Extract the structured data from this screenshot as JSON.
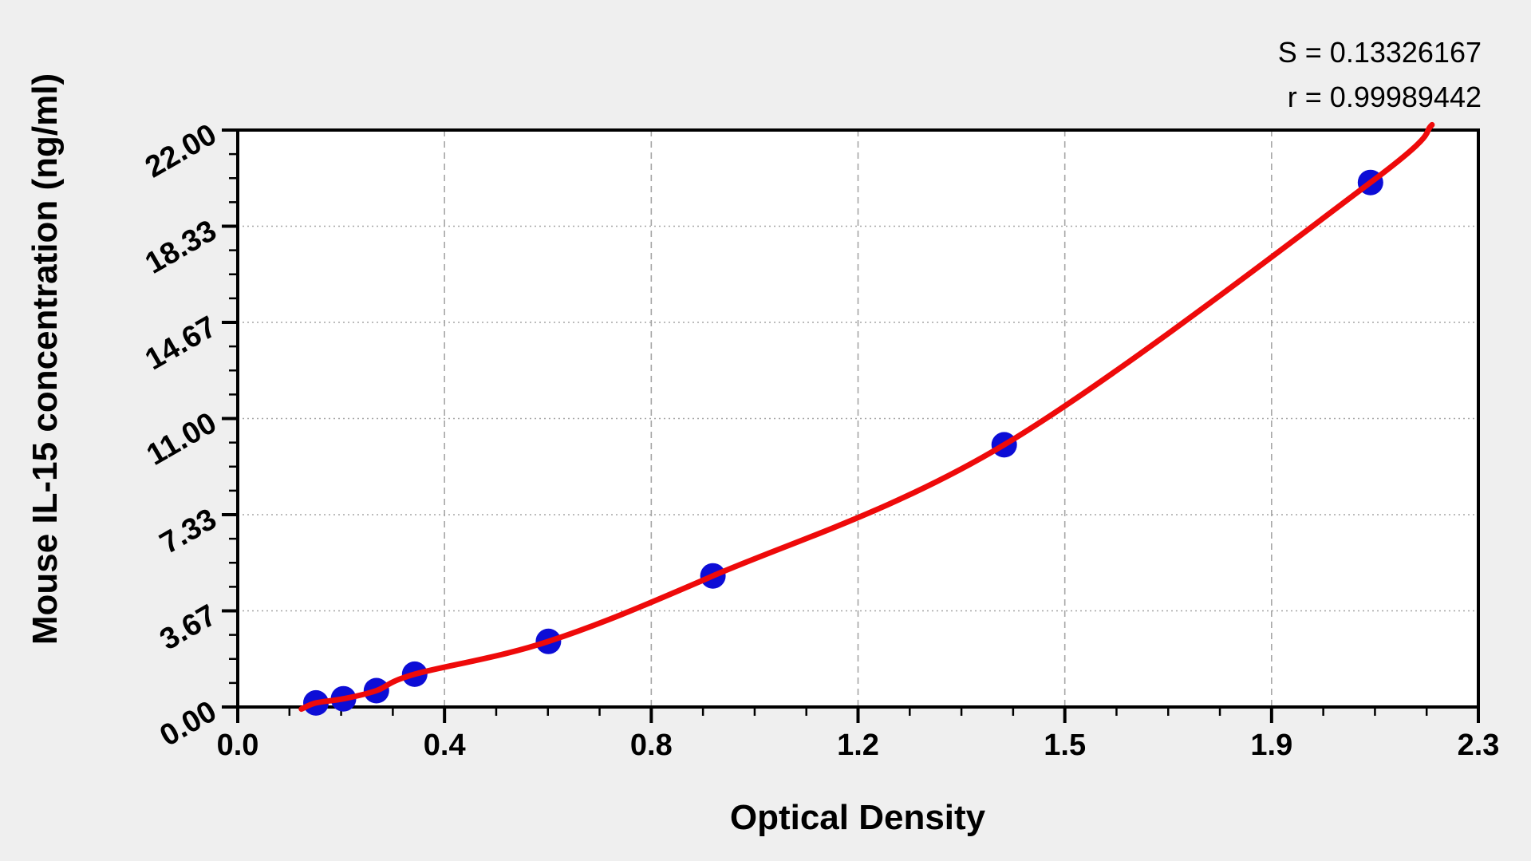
{
  "chart_data": {
    "type": "scatter",
    "xlabel": "Optical Density",
    "ylabel": "Mouse IL-15 concentration (ng/ml)",
    "xlim": [
      0,
      2.3
    ],
    "ylim": [
      0,
      22
    ],
    "x_tick_labels": [
      "0.0",
      "0.4",
      "0.8",
      "1.2",
      "1.5",
      "1.9",
      "2.3"
    ],
    "y_tick_labels": [
      "0.00",
      "3.67",
      "7.33",
      "11.00",
      "14.67",
      "18.33",
      "22.00"
    ],
    "minor_ticks_per_major_interval": 3,
    "grid": "dashed gray lines at major ticks",
    "legend_position": "none",
    "annotations": {
      "s": "S = 0.13326167",
      "r": "r = 0.99989442"
    },
    "series": [
      {
        "name": "standard-points",
        "type": "scatter",
        "color": "#0d0dd6",
        "marker": "circle",
        "points": [
          [
            0.145,
            0.156
          ],
          [
            0.196,
            0.3125
          ],
          [
            0.257,
            0.625
          ],
          [
            0.328,
            1.25
          ],
          [
            0.576,
            2.5
          ],
          [
            0.881,
            5.0
          ],
          [
            1.421,
            10.0
          ],
          [
            2.1,
            20.0
          ]
        ]
      },
      {
        "name": "fitted-curve",
        "type": "line",
        "color": "#ee0a0a",
        "points": [
          [
            0.118,
            -0.08
          ],
          [
            0.145,
            0.156
          ],
          [
            0.196,
            0.3125
          ],
          [
            0.257,
            0.625
          ],
          [
            0.328,
            1.25
          ],
          [
            0.576,
            2.5
          ],
          [
            0.881,
            5.0
          ],
          [
            1.421,
            10.0
          ],
          [
            2.1,
            20.0
          ],
          [
            2.214,
            22.2
          ]
        ]
      }
    ],
    "colors": {
      "background": "#efefef",
      "plot_background": "#ffffff",
      "frame": "#000000",
      "gridline": "#a6a6a6",
      "curve": "#ee0a0a",
      "points": "#0d0dd6"
    }
  }
}
